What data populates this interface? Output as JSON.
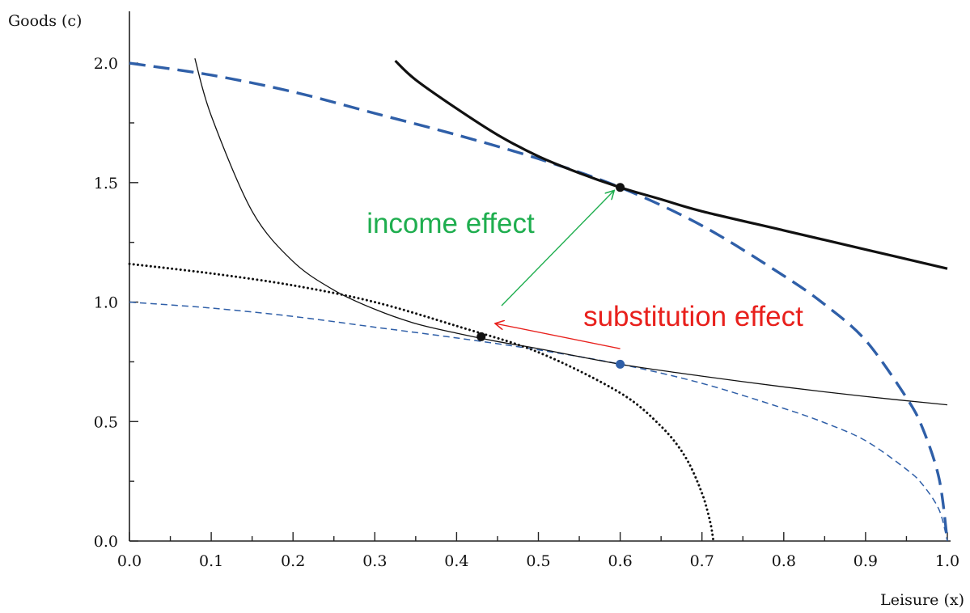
{
  "chart_data": {
    "type": "line",
    "title": "",
    "xlabel": "Leisure  (x)",
    "ylabel": "Goods (c)",
    "xlim": [
      0,
      1
    ],
    "ylim": [
      0,
      2.2
    ],
    "xticks": [
      "0.0",
      "0.1",
      "0.2",
      "0.3",
      "0.4",
      "0.5",
      "0.6",
      "0.7",
      "0.8",
      "0.9",
      "1.0"
    ],
    "yticks": [
      "0.0",
      "0.5",
      "1.0",
      "1.5",
      "2.0"
    ],
    "grid": false,
    "series": [
      {
        "style": "dashed-thick",
        "color": "#2f5fa8",
        "x": [
          0.0,
          0.1,
          0.2,
          0.3,
          0.4,
          0.5,
          0.6,
          0.7,
          0.8,
          0.85,
          0.9,
          0.95,
          0.97,
          0.99,
          1.0
        ],
        "y": [
          2.0,
          1.95,
          1.88,
          1.79,
          1.7,
          1.6,
          1.48,
          1.32,
          1.11,
          0.99,
          0.84,
          0.6,
          0.47,
          0.26,
          0.0
        ]
      },
      {
        "style": "dashed-thin",
        "color": "#2f5fa8",
        "x": [
          0.0,
          0.1,
          0.2,
          0.3,
          0.4,
          0.5,
          0.6,
          0.7,
          0.8,
          0.85,
          0.9,
          0.95,
          0.97,
          0.99,
          1.0
        ],
        "y": [
          1.0,
          0.975,
          0.94,
          0.895,
          0.85,
          0.8,
          0.74,
          0.66,
          0.555,
          0.495,
          0.42,
          0.3,
          0.235,
          0.13,
          0.0
        ]
      },
      {
        "style": "dotted",
        "color": "#111111",
        "x": [
          0.0,
          0.1,
          0.2,
          0.3,
          0.4,
          0.5,
          0.6,
          0.65,
          0.68,
          0.7,
          0.71,
          0.714
        ],
        "y": [
          1.16,
          1.12,
          1.07,
          1.0,
          0.9,
          0.79,
          0.62,
          0.48,
          0.35,
          0.2,
          0.08,
          0.0
        ]
      },
      {
        "style": "solid-thin",
        "color": "#111111",
        "x": [
          0.08,
          0.1,
          0.15,
          0.2,
          0.25,
          0.3,
          0.35,
          0.4,
          0.45,
          0.5,
          0.6,
          0.7,
          0.8,
          0.9,
          1.0
        ],
        "y": [
          2.02,
          1.78,
          1.38,
          1.17,
          1.05,
          0.97,
          0.91,
          0.87,
          0.835,
          0.805,
          0.74,
          0.69,
          0.645,
          0.605,
          0.57
        ]
      },
      {
        "style": "solid-thick",
        "color": "#111111",
        "x": [
          0.325,
          0.35,
          0.4,
          0.45,
          0.5,
          0.55,
          0.6,
          0.65,
          0.7,
          0.8,
          0.9,
          1.0
        ],
        "y": [
          2.01,
          1.93,
          1.81,
          1.7,
          1.61,
          1.54,
          1.48,
          1.43,
          1.38,
          1.3,
          1.22,
          1.14
        ]
      }
    ],
    "points": [
      {
        "x": 0.6,
        "y": 1.48,
        "color": "#111111"
      },
      {
        "x": 0.43,
        "y": 0.855,
        "color": "#111111"
      },
      {
        "x": 0.6,
        "y": 0.74,
        "color": "#2f5fa8"
      }
    ],
    "annotations": [
      {
        "text": "income effect",
        "color": "#1fae4f",
        "x": 0.29,
        "y": 1.29
      },
      {
        "text": "substitution effect",
        "color": "#e8201c",
        "x": 0.555,
        "y": 0.9
      }
    ],
    "arrows": [
      {
        "color": "#1fae4f",
        "x1": 0.455,
        "y1": 0.985,
        "x2": 0.592,
        "y2": 1.465
      },
      {
        "color": "#e8201c",
        "x1": 0.6,
        "y1": 0.805,
        "x2": 0.448,
        "y2": 0.91
      }
    ]
  }
}
